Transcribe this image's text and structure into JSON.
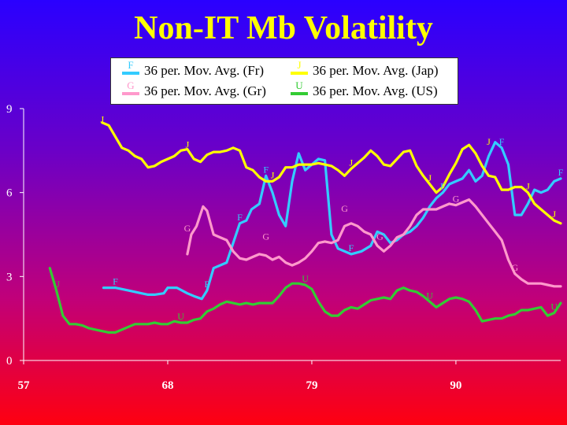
{
  "chart_data": {
    "type": "line",
    "title": "Non-IT Mb Volatility",
    "xlabel": "",
    "ylabel": "",
    "xlim": [
      57,
      98
    ],
    "ylim": [
      0,
      9
    ],
    "yticks": [
      0,
      3,
      6,
      9
    ],
    "xticks": [
      57,
      68,
      79,
      90
    ],
    "legend_position": "top",
    "series": [
      {
        "name": "36 per. Mov. Avg. (Fr)",
        "marker": "F",
        "color": "#33ccff",
        "points": [
          [
            63.1,
            2.6
          ],
          [
            64,
            2.6
          ],
          [
            65,
            2.5
          ],
          [
            66,
            2.4
          ],
          [
            66.5,
            2.35
          ],
          [
            67,
            2.35
          ],
          [
            67.7,
            2.4
          ],
          [
            68,
            2.6
          ],
          [
            68.7,
            2.6
          ],
          [
            69.5,
            2.4
          ],
          [
            70,
            2.3
          ],
          [
            70.6,
            2.2
          ],
          [
            71,
            2.5
          ],
          [
            71.5,
            3.3
          ],
          [
            72.5,
            3.5
          ],
          [
            73,
            4.2
          ],
          [
            73.5,
            4.9
          ],
          [
            74,
            5.0
          ],
          [
            74.4,
            5.4
          ],
          [
            75,
            5.6
          ],
          [
            75.5,
            6.6
          ],
          [
            76,
            6.0
          ],
          [
            76.5,
            5.2
          ],
          [
            77,
            4.8
          ],
          [
            77.5,
            6.4
          ],
          [
            78,
            7.4
          ],
          [
            78.5,
            6.8
          ],
          [
            79.5,
            7.2
          ],
          [
            80,
            7.15
          ],
          [
            80.5,
            4.5
          ],
          [
            81,
            4.0
          ],
          [
            82,
            3.8
          ],
          [
            82.8,
            3.9
          ],
          [
            83.5,
            4.1
          ],
          [
            84,
            4.6
          ],
          [
            84.5,
            4.5
          ],
          [
            85,
            4.2
          ],
          [
            85.5,
            4.3
          ],
          [
            86,
            4.5
          ],
          [
            86.5,
            4.6
          ],
          [
            87,
            4.8
          ],
          [
            87.5,
            5.1
          ],
          [
            88,
            5.5
          ],
          [
            88.5,
            5.8
          ],
          [
            89,
            6.0
          ],
          [
            89.5,
            6.3
          ],
          [
            90,
            6.4
          ],
          [
            90.5,
            6.5
          ],
          [
            91,
            6.8
          ],
          [
            91.5,
            6.4
          ],
          [
            92,
            6.6
          ],
          [
            92.5,
            7.3
          ],
          [
            93,
            7.8
          ],
          [
            93.5,
            7.6
          ],
          [
            94,
            7.0
          ],
          [
            94.5,
            5.2
          ],
          [
            95,
            5.2
          ],
          [
            95.5,
            5.6
          ],
          [
            96,
            6.1
          ],
          [
            96.5,
            6.0
          ],
          [
            97,
            6.1
          ],
          [
            97.5,
            6.4
          ],
          [
            98,
            6.5
          ]
        ]
      },
      {
        "name": "36 per. Mov. Avg. (Gr)",
        "marker": "G",
        "color": "#ff99cc",
        "points": [
          [
            69.5,
            3.8
          ],
          [
            69.8,
            4.5
          ],
          [
            70.2,
            4.8
          ],
          [
            70.7,
            5.5
          ],
          [
            71,
            5.35
          ],
          [
            71.5,
            4.5
          ],
          [
            72,
            4.4
          ],
          [
            72.5,
            4.3
          ],
          [
            73,
            3.9
          ],
          [
            73.5,
            3.65
          ],
          [
            74,
            3.6
          ],
          [
            74.5,
            3.7
          ],
          [
            75,
            3.8
          ],
          [
            75.5,
            3.75
          ],
          [
            76,
            3.6
          ],
          [
            76.5,
            3.7
          ],
          [
            77,
            3.5
          ],
          [
            77.5,
            3.4
          ],
          [
            78,
            3.5
          ],
          [
            78.5,
            3.65
          ],
          [
            79,
            3.9
          ],
          [
            79.5,
            4.2
          ],
          [
            80,
            4.25
          ],
          [
            80.5,
            4.2
          ],
          [
            81,
            4.3
          ],
          [
            81.5,
            4.8
          ],
          [
            82,
            4.9
          ],
          [
            82.5,
            4.8
          ],
          [
            83,
            4.6
          ],
          [
            83.5,
            4.5
          ],
          [
            84,
            4.1
          ],
          [
            84.5,
            3.9
          ],
          [
            85,
            4.1
          ],
          [
            85.5,
            4.4
          ],
          [
            86,
            4.5
          ],
          [
            86.5,
            4.8
          ],
          [
            87,
            5.2
          ],
          [
            87.5,
            5.4
          ],
          [
            88,
            5.4
          ],
          [
            88.5,
            5.4
          ],
          [
            89,
            5.5
          ],
          [
            89.5,
            5.6
          ],
          [
            90,
            5.55
          ],
          [
            90.5,
            5.65
          ],
          [
            91,
            5.75
          ],
          [
            91.5,
            5.5
          ],
          [
            92,
            5.2
          ],
          [
            92.5,
            4.9
          ],
          [
            93,
            4.6
          ],
          [
            93.5,
            4.3
          ],
          [
            94,
            3.6
          ],
          [
            94.5,
            3.1
          ],
          [
            95,
            2.9
          ],
          [
            95.5,
            2.75
          ],
          [
            96,
            2.75
          ],
          [
            96.5,
            2.75
          ],
          [
            97,
            2.7
          ],
          [
            97.5,
            2.65
          ],
          [
            98,
            2.65
          ]
        ]
      },
      {
        "name": "36 per. Mov. Avg. (Jap)",
        "marker": "J",
        "color": "#ffff00",
        "points": [
          [
            63,
            8.5
          ],
          [
            63.5,
            8.4
          ],
          [
            64,
            8.0
          ],
          [
            64.5,
            7.6
          ],
          [
            65,
            7.5
          ],
          [
            65.5,
            7.3
          ],
          [
            66,
            7.2
          ],
          [
            66.5,
            6.9
          ],
          [
            67,
            6.95
          ],
          [
            67.5,
            7.1
          ],
          [
            68,
            7.2
          ],
          [
            68.5,
            7.3
          ],
          [
            69,
            7.5
          ],
          [
            69.5,
            7.55
          ],
          [
            70,
            7.2
          ],
          [
            70.5,
            7.1
          ],
          [
            71,
            7.35
          ],
          [
            71.5,
            7.45
          ],
          [
            72,
            7.45
          ],
          [
            72.5,
            7.5
          ],
          [
            73,
            7.6
          ],
          [
            73.5,
            7.5
          ],
          [
            74,
            6.9
          ],
          [
            74.5,
            6.8
          ],
          [
            75,
            6.55
          ],
          [
            75.5,
            6.4
          ],
          [
            76,
            6.4
          ],
          [
            76.5,
            6.55
          ],
          [
            77,
            6.9
          ],
          [
            77.5,
            6.9
          ],
          [
            78,
            7.0
          ],
          [
            78.5,
            7.0
          ],
          [
            79,
            7.0
          ],
          [
            79.5,
            7.05
          ],
          [
            80,
            7.0
          ],
          [
            80.5,
            6.95
          ],
          [
            81,
            6.8
          ],
          [
            81.5,
            6.6
          ],
          [
            82,
            6.85
          ],
          [
            82.5,
            7.05
          ],
          [
            83,
            7.25
          ],
          [
            83.5,
            7.5
          ],
          [
            84,
            7.3
          ],
          [
            84.5,
            7.0
          ],
          [
            85,
            6.95
          ],
          [
            85.5,
            7.2
          ],
          [
            86,
            7.45
          ],
          [
            86.5,
            7.5
          ],
          [
            87,
            6.95
          ],
          [
            87.5,
            6.6
          ],
          [
            88,
            6.3
          ],
          [
            88.5,
            6.0
          ],
          [
            89,
            6.2
          ],
          [
            89.5,
            6.65
          ],
          [
            90,
            7.05
          ],
          [
            90.5,
            7.55
          ],
          [
            91,
            7.7
          ],
          [
            91.5,
            7.4
          ],
          [
            92,
            6.95
          ],
          [
            92.5,
            6.6
          ],
          [
            93,
            6.55
          ],
          [
            93.5,
            6.1
          ],
          [
            94,
            6.1
          ],
          [
            94.5,
            6.2
          ],
          [
            95,
            6.2
          ],
          [
            95.5,
            6.0
          ],
          [
            96,
            5.6
          ],
          [
            96.5,
            5.4
          ],
          [
            97,
            5.2
          ],
          [
            97.5,
            5.0
          ],
          [
            98,
            4.9
          ]
        ]
      },
      {
        "name": "36 per. Mov. Avg. (US)",
        "marker": "U",
        "color": "#33cc33",
        "points": [
          [
            59,
            3.3
          ],
          [
            59.5,
            2.5
          ],
          [
            60,
            1.6
          ],
          [
            60.5,
            1.3
          ],
          [
            61,
            1.3
          ],
          [
            61.5,
            1.25
          ],
          [
            62,
            1.15
          ],
          [
            62.5,
            1.1
          ],
          [
            63,
            1.05
          ],
          [
            63.5,
            1.0
          ],
          [
            64,
            1.0
          ],
          [
            64.5,
            1.1
          ],
          [
            65,
            1.2
          ],
          [
            65.5,
            1.3
          ],
          [
            66,
            1.3
          ],
          [
            66.5,
            1.3
          ],
          [
            67,
            1.35
          ],
          [
            67.5,
            1.3
          ],
          [
            68,
            1.3
          ],
          [
            68.5,
            1.4
          ],
          [
            69,
            1.35
          ],
          [
            69.5,
            1.35
          ],
          [
            70,
            1.45
          ],
          [
            70.5,
            1.5
          ],
          [
            71,
            1.75
          ],
          [
            71.5,
            1.85
          ],
          [
            72,
            2.0
          ],
          [
            72.5,
            2.1
          ],
          [
            73,
            2.05
          ],
          [
            73.5,
            2.0
          ],
          [
            74,
            2.05
          ],
          [
            74.5,
            2.0
          ],
          [
            75,
            2.05
          ],
          [
            75.5,
            2.05
          ],
          [
            76,
            2.05
          ],
          [
            76.5,
            2.3
          ],
          [
            77,
            2.6
          ],
          [
            77.5,
            2.75
          ],
          [
            78,
            2.75
          ],
          [
            78.5,
            2.7
          ],
          [
            79,
            2.55
          ],
          [
            79.5,
            2.1
          ],
          [
            80,
            1.75
          ],
          [
            80.5,
            1.6
          ],
          [
            81,
            1.6
          ],
          [
            81.5,
            1.8
          ],
          [
            82,
            1.9
          ],
          [
            82.5,
            1.85
          ],
          [
            83,
            2.0
          ],
          [
            83.5,
            2.15
          ],
          [
            84,
            2.2
          ],
          [
            84.5,
            2.25
          ],
          [
            85,
            2.2
          ],
          [
            85.5,
            2.5
          ],
          [
            86,
            2.6
          ],
          [
            86.5,
            2.5
          ],
          [
            87,
            2.45
          ],
          [
            87.5,
            2.3
          ],
          [
            88,
            2.1
          ],
          [
            88.5,
            1.9
          ],
          [
            89,
            2.05
          ],
          [
            89.5,
            2.2
          ],
          [
            90,
            2.25
          ],
          [
            90.5,
            2.2
          ],
          [
            91,
            2.1
          ],
          [
            91.5,
            1.8
          ],
          [
            92,
            1.4
          ],
          [
            92.5,
            1.45
          ],
          [
            93,
            1.5
          ],
          [
            93.5,
            1.5
          ],
          [
            94,
            1.6
          ],
          [
            94.5,
            1.65
          ],
          [
            95,
            1.8
          ],
          [
            95.5,
            1.8
          ],
          [
            96,
            1.85
          ],
          [
            96.5,
            1.9
          ],
          [
            97,
            1.6
          ],
          [
            97.5,
            1.7
          ],
          [
            98,
            2.05
          ]
        ]
      }
    ],
    "annotations": [
      {
        "series": 0,
        "text": "F",
        "x": 64,
        "y": 2.6
      },
      {
        "series": 0,
        "text": "F",
        "x": 71,
        "y": 2.5
      },
      {
        "series": 0,
        "text": "F",
        "x": 73.5,
        "y": 4.9
      },
      {
        "series": 0,
        "text": "F",
        "x": 75.5,
        "y": 6.6
      },
      {
        "series": 0,
        "text": "F",
        "x": 82,
        "y": 3.8
      },
      {
        "series": 0,
        "text": "F",
        "x": 89,
        "y": 6.0
      },
      {
        "series": 0,
        "text": "F",
        "x": 93.5,
        "y": 7.6
      },
      {
        "series": 0,
        "text": "F",
        "x": 98,
        "y": 6.5
      },
      {
        "series": 1,
        "text": "G",
        "x": 69.5,
        "y": 4.5
      },
      {
        "series": 1,
        "text": "G",
        "x": 75.5,
        "y": 4.2
      },
      {
        "series": 1,
        "text": "G",
        "x": 81.5,
        "y": 5.2
      },
      {
        "series": 1,
        "text": "G",
        "x": 84.2,
        "y": 4.2
      },
      {
        "series": 1,
        "text": "G",
        "x": 90,
        "y": 5.55
      },
      {
        "series": 1,
        "text": "G",
        "x": 94.5,
        "y": 3.1
      },
      {
        "series": 2,
        "text": "J",
        "x": 63,
        "y": 8.4
      },
      {
        "series": 2,
        "text": "J",
        "x": 69.5,
        "y": 7.5
      },
      {
        "series": 2,
        "text": "J",
        "x": 76,
        "y": 6.4
      },
      {
        "series": 2,
        "text": "J",
        "x": 82,
        "y": 6.85
      },
      {
        "series": 2,
        "text": "J",
        "x": 88,
        "y": 6.3
      },
      {
        "series": 2,
        "text": "J",
        "x": 92.5,
        "y": 7.6
      },
      {
        "series": 2,
        "text": "J",
        "x": 95.5,
        "y": 6.0
      },
      {
        "series": 2,
        "text": "J",
        "x": 97.5,
        "y": 5.0
      },
      {
        "series": 3,
        "text": "U",
        "x": 59.5,
        "y": 2.5
      },
      {
        "series": 3,
        "text": "U",
        "x": 69,
        "y": 1.35
      },
      {
        "series": 3,
        "text": "U",
        "x": 78.5,
        "y": 2.7
      },
      {
        "series": 3,
        "text": "U",
        "x": 88,
        "y": 2.1
      },
      {
        "series": 3,
        "text": "U",
        "x": 97.5,
        "y": 1.7
      }
    ]
  }
}
